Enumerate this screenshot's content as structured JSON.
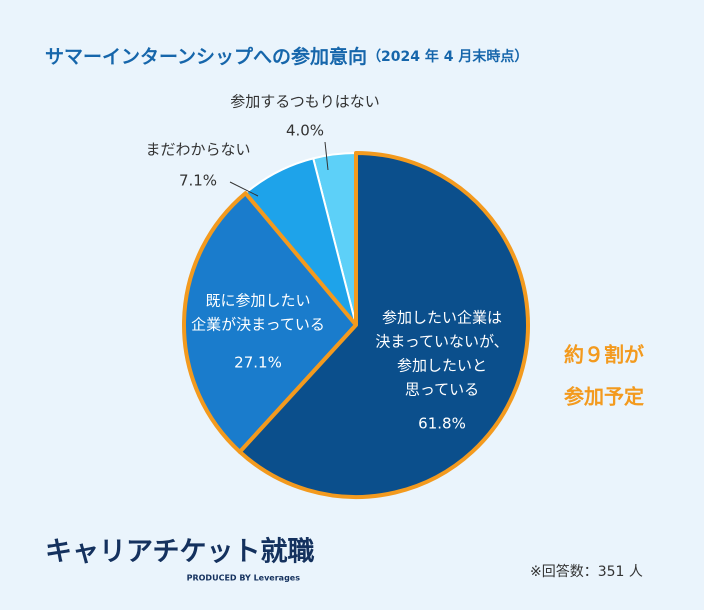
{
  "chart_data": {
    "type": "pie",
    "title": "サマーインターンシップへの参加意向",
    "subtitle": "（2024 年 4 月末時点）",
    "categories": [
      [
        "参加したい企業は",
        "決まっていないが、",
        "参加したいと",
        "思っている"
      ],
      [
        "既に参加したい",
        "企業が決まっている"
      ],
      [
        "まだわからない"
      ],
      [
        "参加するつもりはない"
      ]
    ],
    "values": [
      61.8,
      27.1,
      7.1,
      4.0
    ],
    "value_labels": [
      "61.8%",
      "27.1%",
      "7.1%",
      "4.0%"
    ],
    "colors": [
      "#0b4f8c",
      "#1a7ccc",
      "#1ea3ea",
      "#5dd0f8"
    ],
    "outlines": [
      "#f39a1e",
      "#f39a1e",
      "#ffffff",
      "#ffffff"
    ],
    "annotation": [
      "約９割が",
      "参加予定"
    ],
    "logo": "キャリアチケット就職",
    "logo_sub": "PRODUCED BY Leverages",
    "note": "※回答数：351 人"
  }
}
